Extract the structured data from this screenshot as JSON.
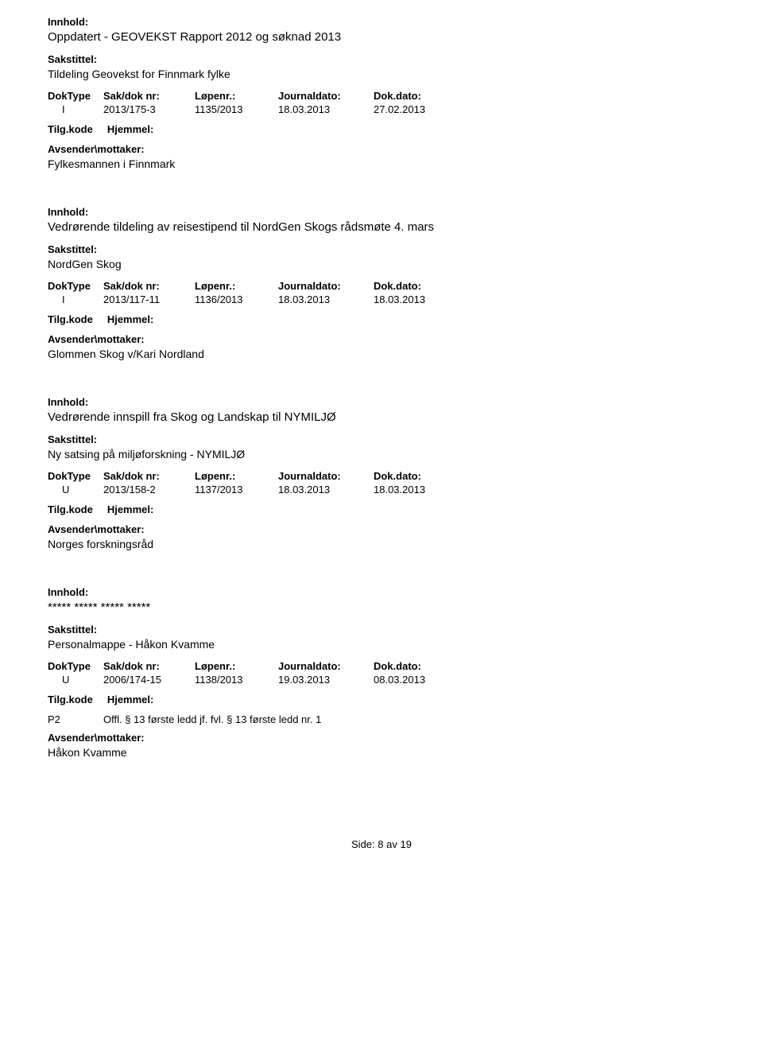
{
  "labels": {
    "innhold": "Innhold:",
    "sakstittel": "Sakstittel:",
    "doktype": "DokType",
    "sakdoknr": "Sak/dok nr:",
    "lopenr": "Løpenr.:",
    "journaldato": "Journaldato:",
    "dokdato": "Dok.dato:",
    "tilgkode": "Tilg.kode",
    "hiemmel": "Hjemmel:",
    "avsender": "Avsender\\mottaker:"
  },
  "entries": [
    {
      "innhold": "Oppdatert - GEOVEKST Rapport 2012 og søknad 2013",
      "sakstittel": "Tildeling Geovekst for Finnmark fylke",
      "doktype": "I",
      "sakdok": "2013/175-3",
      "lopenr": "1135/2013",
      "journal": "18.03.2013",
      "dokdato": "27.02.2013",
      "tilgcode": "",
      "hiemmel": "",
      "avsender": "Fylkesmannen i  Finnmark"
    },
    {
      "innhold": "Vedrørende tildeling av reisestipend til NordGen Skogs rådsmøte 4. mars",
      "sakstittel": "NordGen Skog",
      "doktype": "I",
      "sakdok": "2013/117-11",
      "lopenr": "1136/2013",
      "journal": "18.03.2013",
      "dokdato": "18.03.2013",
      "tilgcode": "",
      "hiemmel": "",
      "avsender": "Glommen Skog v/Kari Nordland"
    },
    {
      "innhold": "Vedrørende innspill fra Skog og Landskap til NYMILJØ",
      "sakstittel": "Ny satsing på miljøforskning - NYMILJØ",
      "doktype": "U",
      "sakdok": "2013/158-2",
      "lopenr": "1137/2013",
      "journal": "18.03.2013",
      "dokdato": "18.03.2013",
      "tilgcode": "",
      "hiemmel": "",
      "avsender": "Norges forskningsråd"
    },
    {
      "innhold": "***** ***** ***** *****",
      "sakstittel": "Personalmappe - Håkon Kvamme",
      "doktype": "U",
      "sakdok": "2006/174-15",
      "lopenr": "1138/2013",
      "journal": "19.03.2013",
      "dokdato": "08.03.2013",
      "tilgcode": "P2",
      "hiemmel": "Offl. § 13 første ledd jf. fvl. § 13 første ledd nr. 1",
      "avsender": "Håkon Kvamme"
    }
  ],
  "footer": {
    "side_label": "Side:",
    "page": "8",
    "av": "av",
    "total": "19"
  }
}
